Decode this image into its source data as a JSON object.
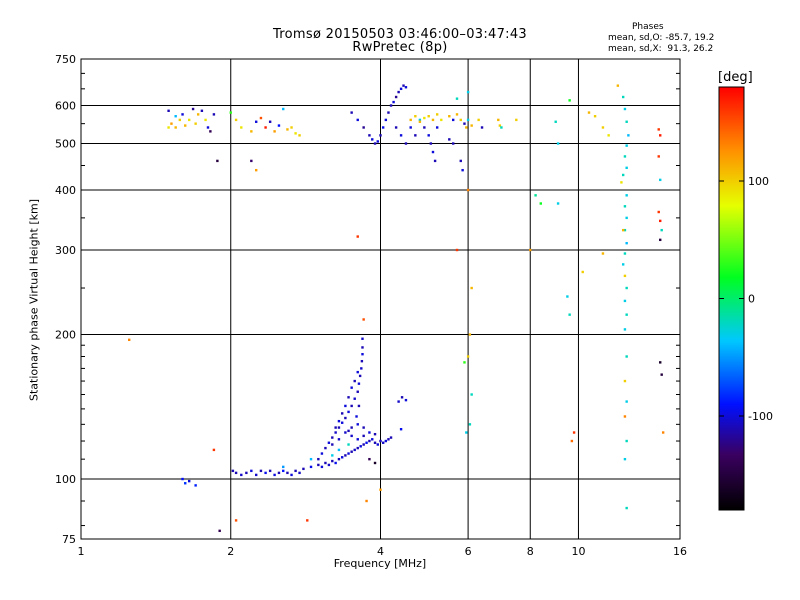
{
  "title": "Tromsø 20150503 03:46:00–03:47:43",
  "subtitle": "RwPretec (8p)",
  "stats": {
    "heading": "Phases",
    "o_line": "mean, sd,O: -85.7, 19.2",
    "x_line": "mean, sd,X:  91.3, 26.2"
  },
  "chart_data": {
    "type": "scatter",
    "title": "Tromsø 20150503 03:46:00–03:47:43",
    "subtitle": "RwPretec (8p)",
    "xlabel": "Frequency [MHz]",
    "ylabel": "Stationary phase Virtual Height [km]",
    "x_scale": "log",
    "y_scale": "log",
    "xlim": [
      1,
      16
    ],
    "ylim": [
      75,
      750
    ],
    "x_ticks": [
      1,
      2,
      4,
      6,
      8,
      10,
      16
    ],
    "y_ticks": [
      75,
      100,
      200,
      300,
      400,
      500,
      600,
      750
    ],
    "grid": true,
    "colorbar": {
      "label": "[deg]",
      "range": [
        -180,
        180
      ],
      "ticks": [
        100,
        0,
        -100
      ]
    },
    "points": [
      [
        2.02,
        104,
        -110
      ],
      [
        2.05,
        103,
        -110
      ],
      [
        2.1,
        102,
        -105
      ],
      [
        2.15,
        103,
        -110
      ],
      [
        2.2,
        104,
        -100
      ],
      [
        2.25,
        102,
        -105
      ],
      [
        2.3,
        104,
        -110
      ],
      [
        2.35,
        103,
        -95
      ],
      [
        2.4,
        104,
        -110
      ],
      [
        2.45,
        102,
        -100
      ],
      [
        2.5,
        103,
        -110
      ],
      [
        2.55,
        104,
        -90
      ],
      [
        2.6,
        103,
        -110
      ],
      [
        2.65,
        102,
        -100
      ],
      [
        2.7,
        104,
        -110
      ],
      [
        2.75,
        103,
        -105
      ],
      [
        2.8,
        105,
        -110
      ],
      [
        2.9,
        106,
        -95
      ],
      [
        3.0,
        107,
        -110
      ],
      [
        3.05,
        106,
        -100
      ],
      [
        3.1,
        108,
        -110
      ],
      [
        3.15,
        107,
        -105
      ],
      [
        3.2,
        109,
        -110
      ],
      [
        3.25,
        108,
        -95
      ],
      [
        3.3,
        110,
        -110
      ],
      [
        3.35,
        111,
        -100
      ],
      [
        3.4,
        112,
        -110
      ],
      [
        3.45,
        113,
        -100
      ],
      [
        3.5,
        114,
        -110
      ],
      [
        3.55,
        115,
        -105
      ],
      [
        3.6,
        116,
        -110
      ],
      [
        3.65,
        117,
        -100
      ],
      [
        3.7,
        118,
        -110
      ],
      [
        3.75,
        119,
        -95
      ],
      [
        3.8,
        120,
        -110
      ],
      [
        3.85,
        121,
        -100
      ],
      [
        3.9,
        119,
        -110
      ],
      [
        3.95,
        118,
        -100
      ],
      [
        4.0,
        120,
        -110
      ],
      [
        4.05,
        119,
        -105
      ],
      [
        4.1,
        120,
        -100
      ],
      [
        4.15,
        121,
        -110
      ],
      [
        3.0,
        110,
        -110
      ],
      [
        3.05,
        113,
        -100
      ],
      [
        3.1,
        116,
        -110
      ],
      [
        3.15,
        119,
        -100
      ],
      [
        3.2,
        122,
        -110
      ],
      [
        3.25,
        125,
        -105
      ],
      [
        3.3,
        128,
        -110
      ],
      [
        3.35,
        131,
        -100
      ],
      [
        3.4,
        134,
        -110
      ],
      [
        3.45,
        138,
        -100
      ],
      [
        3.5,
        142,
        -110
      ],
      [
        3.55,
        147,
        -105
      ],
      [
        3.6,
        152,
        -110
      ],
      [
        3.62,
        158,
        -100
      ],
      [
        3.64,
        164,
        -110
      ],
      [
        3.66,
        170,
        -105
      ],
      [
        3.67,
        176,
        -110
      ],
      [
        3.68,
        182,
        -100
      ],
      [
        3.68,
        188,
        -110
      ],
      [
        3.68,
        196,
        -105
      ],
      [
        3.6,
        167,
        -100
      ],
      [
        3.55,
        160,
        -110
      ],
      [
        3.5,
        155,
        -100
      ],
      [
        3.45,
        148,
        -110
      ],
      [
        3.4,
        142,
        -100
      ],
      [
        3.35,
        137,
        -110
      ],
      [
        3.3,
        132,
        -100
      ],
      [
        3.25,
        128,
        -110
      ],
      [
        3.4,
        125,
        -105
      ],
      [
        3.5,
        128,
        -110
      ],
      [
        3.6,
        130,
        -100
      ],
      [
        3.7,
        128,
        -110
      ],
      [
        3.8,
        125,
        -100
      ],
      [
        3.9,
        124,
        -110
      ],
      [
        3.3,
        121,
        -105
      ],
      [
        3.2,
        118,
        -110
      ],
      [
        3.6,
        121,
        -100
      ],
      [
        3.7,
        123,
        -110
      ],
      [
        3.5,
        123,
        -105
      ],
      [
        3.45,
        126,
        -110
      ],
      [
        3.58,
        135,
        -100
      ],
      [
        3.62,
        142,
        -110
      ],
      [
        4.35,
        145,
        -105
      ],
      [
        4.42,
        148,
        -110
      ],
      [
        4.5,
        146,
        -100
      ],
      [
        4.4,
        127,
        -95
      ],
      [
        4.2,
        122,
        -110
      ],
      [
        3.2,
        112,
        -30
      ],
      [
        3.3,
        115,
        -40
      ],
      [
        3.45,
        118,
        -20
      ],
      [
        2.9,
        110,
        -40
      ],
      [
        2.55,
        106,
        -50
      ],
      [
        1.6,
        100,
        -90
      ],
      [
        1.62,
        98,
        -80
      ],
      [
        1.65,
        99,
        -100
      ],
      [
        1.7,
        97,
        -85
      ],
      [
        1.5,
        585,
        -110
      ],
      [
        1.55,
        570,
        -40
      ],
      [
        1.52,
        550,
        120
      ],
      [
        1.58,
        560,
        100
      ],
      [
        1.6,
        575,
        -100
      ],
      [
        1.65,
        560,
        90
      ],
      [
        1.62,
        545,
        110
      ],
      [
        1.68,
        590,
        -120
      ],
      [
        1.72,
        575,
        110
      ],
      [
        1.75,
        585,
        -110
      ],
      [
        1.7,
        550,
        100
      ],
      [
        1.78,
        560,
        90
      ],
      [
        1.8,
        540,
        -100
      ],
      [
        1.82,
        530,
        -140
      ],
      [
        1.85,
        575,
        -110
      ],
      [
        1.88,
        460,
        -150
      ],
      [
        1.55,
        540,
        110
      ],
      [
        1.5,
        540,
        90
      ],
      [
        2.0,
        580,
        30
      ],
      [
        2.05,
        560,
        100
      ],
      [
        2.1,
        540,
        90
      ],
      [
        2.2,
        530,
        110
      ],
      [
        2.25,
        555,
        -100
      ],
      [
        2.3,
        565,
        150
      ],
      [
        2.35,
        540,
        170
      ],
      [
        2.4,
        555,
        -110
      ],
      [
        2.45,
        530,
        120
      ],
      [
        2.5,
        545,
        -90
      ],
      [
        2.55,
        590,
        -40
      ],
      [
        2.6,
        535,
        110
      ],
      [
        2.65,
        540,
        100
      ],
      [
        2.7,
        525,
        90
      ],
      [
        2.75,
        520,
        100
      ],
      [
        2.2,
        460,
        -130
      ],
      [
        2.25,
        440,
        120
      ],
      [
        3.5,
        580,
        -110
      ],
      [
        3.6,
        560,
        -100
      ],
      [
        3.7,
        540,
        -120
      ],
      [
        3.8,
        520,
        -110
      ],
      [
        3.85,
        510,
        -100
      ],
      [
        3.9,
        500,
        -110
      ],
      [
        3.95,
        505,
        -100
      ],
      [
        4.0,
        520,
        -110
      ],
      [
        4.05,
        540,
        -95
      ],
      [
        4.1,
        560,
        -100
      ],
      [
        4.15,
        580,
        -110
      ],
      [
        4.2,
        600,
        -110
      ],
      [
        4.25,
        610,
        -100
      ],
      [
        4.3,
        625,
        -120
      ],
      [
        4.35,
        640,
        -110
      ],
      [
        4.4,
        650,
        -100
      ],
      [
        4.45,
        660,
        -110
      ],
      [
        4.5,
        655,
        -100
      ],
      [
        4.3,
        540,
        -110
      ],
      [
        4.4,
        520,
        -100
      ],
      [
        4.5,
        500,
        -110
      ],
      [
        4.6,
        540,
        -100
      ],
      [
        4.7,
        520,
        -110
      ],
      [
        4.8,
        560,
        -30
      ],
      [
        4.9,
        540,
        -110
      ],
      [
        5.0,
        520,
        -100
      ],
      [
        5.05,
        500,
        -110
      ],
      [
        5.1,
        480,
        -100
      ],
      [
        5.15,
        460,
        -110
      ],
      [
        5.2,
        540,
        -100
      ],
      [
        4.6,
        560,
        110
      ],
      [
        4.7,
        570,
        100
      ],
      [
        4.8,
        555,
        110
      ],
      [
        4.9,
        565,
        90
      ],
      [
        5.0,
        570,
        100
      ],
      [
        5.1,
        560,
        110
      ],
      [
        5.2,
        575,
        100
      ],
      [
        5.3,
        560,
        90
      ],
      [
        5.5,
        570,
        110
      ],
      [
        5.6,
        560,
        -100
      ],
      [
        5.7,
        575,
        110
      ],
      [
        5.8,
        560,
        100
      ],
      [
        5.9,
        550,
        -110
      ],
      [
        5.95,
        540,
        110
      ],
      [
        6.0,
        560,
        -30
      ],
      [
        6.1,
        545,
        110
      ],
      [
        6.3,
        560,
        100
      ],
      [
        6.4,
        540,
        -110
      ],
      [
        5.7,
        620,
        -20
      ],
      [
        6.0,
        640,
        -30
      ],
      [
        5.6,
        500,
        -110
      ],
      [
        5.8,
        460,
        -110
      ],
      [
        5.85,
        440,
        -100
      ],
      [
        5.5,
        510,
        -110
      ],
      [
        6.9,
        560,
        110
      ],
      [
        6.95,
        545,
        100
      ],
      [
        7.0,
        540,
        -20
      ],
      [
        7.5,
        560,
        100
      ],
      [
        8.2,
        390,
        -10
      ],
      [
        8.4,
        375,
        20
      ],
      [
        9.0,
        555,
        -20
      ],
      [
        9.1,
        500,
        -30
      ],
      [
        9.6,
        615,
        20
      ],
      [
        9.1,
        375,
        -30
      ],
      [
        10.5,
        580,
        110
      ],
      [
        10.8,
        570,
        100
      ],
      [
        11.2,
        540,
        100
      ],
      [
        11.5,
        520,
        90
      ],
      [
        12.0,
        660,
        110
      ],
      [
        12.3,
        625,
        -20
      ],
      [
        12.4,
        590,
        -30
      ],
      [
        12.5,
        555,
        -20
      ],
      [
        12.6,
        520,
        -40
      ],
      [
        12.5,
        495,
        -30
      ],
      [
        12.4,
        470,
        -20
      ],
      [
        12.5,
        445,
        -30
      ],
      [
        12.3,
        430,
        -20
      ],
      [
        12.2,
        415,
        90
      ],
      [
        12.5,
        390,
        -30
      ],
      [
        12.4,
        370,
        -20
      ],
      [
        12.5,
        350,
        -30
      ],
      [
        12.4,
        330,
        -20
      ],
      [
        12.5,
        310,
        -40
      ],
      [
        12.4,
        295,
        -20
      ],
      [
        12.3,
        280,
        -30
      ],
      [
        12.4,
        265,
        100
      ],
      [
        12.5,
        250,
        -20
      ],
      [
        12.4,
        235,
        -30
      ],
      [
        12.5,
        220,
        -20
      ],
      [
        12.4,
        205,
        -30
      ],
      [
        12.5,
        180,
        -20
      ],
      [
        12.4,
        160,
        100
      ],
      [
        12.5,
        145,
        -30
      ],
      [
        12.4,
        135,
        130
      ],
      [
        12.5,
        120,
        -20
      ],
      [
        12.4,
        110,
        -30
      ],
      [
        12.5,
        87,
        -20
      ],
      [
        12.3,
        330,
        110
      ],
      [
        14.5,
        535,
        160
      ],
      [
        14.6,
        520,
        170
      ],
      [
        14.5,
        470,
        160
      ],
      [
        14.6,
        420,
        -30
      ],
      [
        14.5,
        360,
        160
      ],
      [
        14.6,
        345,
        170
      ],
      [
        14.7,
        330,
        -20
      ],
      [
        14.6,
        315,
        -150
      ],
      [
        14.6,
        175,
        -160
      ],
      [
        14.7,
        165,
        -150
      ],
      [
        14.8,
        125,
        130
      ],
      [
        6.0,
        400,
        130
      ],
      [
        6.05,
        200,
        110
      ],
      [
        6.1,
        150,
        -20
      ],
      [
        5.9,
        175,
        30
      ],
      [
        6.05,
        130,
        -20
      ],
      [
        5.95,
        125,
        -30
      ],
      [
        6.0,
        180,
        100
      ],
      [
        6.1,
        250,
        110
      ],
      [
        5.7,
        300,
        160
      ],
      [
        8.0,
        300,
        120
      ],
      [
        9.8,
        125,
        160
      ],
      [
        9.7,
        120,
        140
      ],
      [
        9.5,
        240,
        -30
      ],
      [
        9.6,
        220,
        -20
      ],
      [
        10.2,
        270,
        100
      ],
      [
        11.2,
        295,
        110
      ],
      [
        3.6,
        320,
        160
      ],
      [
        3.7,
        215,
        150
      ],
      [
        3.75,
        90,
        130
      ],
      [
        3.8,
        110,
        -140
      ],
      [
        3.9,
        108,
        -160
      ],
      [
        4.0,
        95,
        120
      ],
      [
        1.25,
        195,
        130
      ],
      [
        1.85,
        115,
        160
      ],
      [
        2.05,
        82,
        150
      ],
      [
        2.85,
        82,
        160
      ],
      [
        1.9,
        78,
        -140
      ]
    ]
  }
}
